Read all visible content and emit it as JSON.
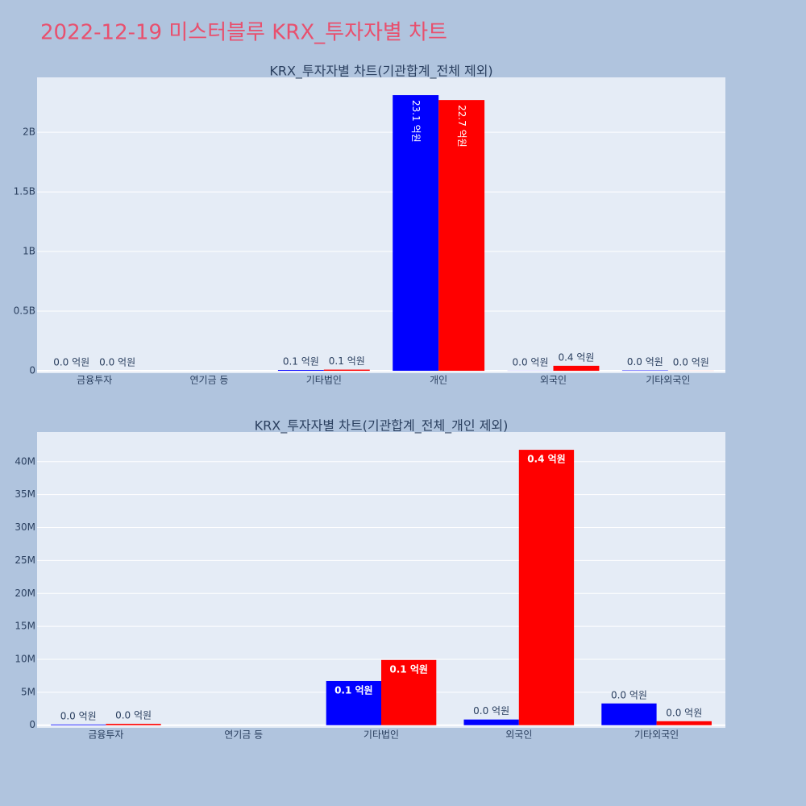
{
  "title": "2022-12-19 미스터블루 KRX_투자자별 차트",
  "chart_data": [
    {
      "type": "bar",
      "title": "KRX_투자자별 차트(기관합계_전체 제외)",
      "categories": [
        "금융투자",
        "연기금 등",
        "기타법인",
        "개인",
        "외국인",
        "기타외국인"
      ],
      "series": [
        {
          "color": "#0000ff",
          "values": [
            100000,
            null,
            6700000,
            2311000000,
            860000,
            3300000
          ],
          "value_labels": [
            "0.0 억원",
            null,
            "0.1 억원",
            "23.1 억원",
            "0.0 억원",
            "0.0 억원"
          ]
        },
        {
          "color": "#ff0000",
          "values": [
            200000,
            null,
            9900000,
            2270000000,
            41800000,
            600000
          ],
          "value_labels": [
            "0.0 억원",
            null,
            "0.1 억원",
            "22.7 억원",
            "0.4 억원",
            "0.0 억원"
          ]
        }
      ],
      "ylim": [
        -20000000,
        2460000000
      ],
      "yticks": [
        0,
        {
          "value": 500000000,
          "label": "0.5B"
        },
        {
          "value": 1000000000,
          "label": "1B"
        },
        {
          "value": 1500000000,
          "label": "1.5B"
        },
        {
          "value": 2000000000,
          "label": "2B"
        }
      ],
      "grid": true
    },
    {
      "type": "bar",
      "title": "KRX_투자자별 차트(기관합계_전체_개인 제외)",
      "categories": [
        "금융투자",
        "연기금 등",
        "기타법인",
        "외국인",
        "기타외국인"
      ],
      "series": [
        {
          "color": "#0000ff",
          "values": [
            100000,
            null,
            6700000,
            860000,
            3300000
          ],
          "value_labels": [
            "0.0 억원",
            null,
            "0.1 억원",
            "0.0 억원",
            "0.0 억원"
          ]
        },
        {
          "color": "#ff0000",
          "values": [
            200000,
            null,
            9900000,
            41800000,
            600000
          ],
          "value_labels": [
            "0.0 억원",
            null,
            "0.1 억원",
            "0.4 억원",
            "0.0 억원"
          ]
        }
      ],
      "ylim": [
        -400000,
        44500000
      ],
      "yticks": [
        0,
        {
          "value": 5000000,
          "label": "5M"
        },
        {
          "value": 10000000,
          "label": "10M"
        },
        {
          "value": 15000000,
          "label": "15M"
        },
        {
          "value": 20000000,
          "label": "20M"
        },
        {
          "value": 25000000,
          "label": "25M"
        },
        {
          "value": 30000000,
          "label": "30M"
        },
        {
          "value": 35000000,
          "label": "35M"
        },
        {
          "value": 40000000,
          "label": "40M"
        }
      ],
      "grid": true
    }
  ]
}
